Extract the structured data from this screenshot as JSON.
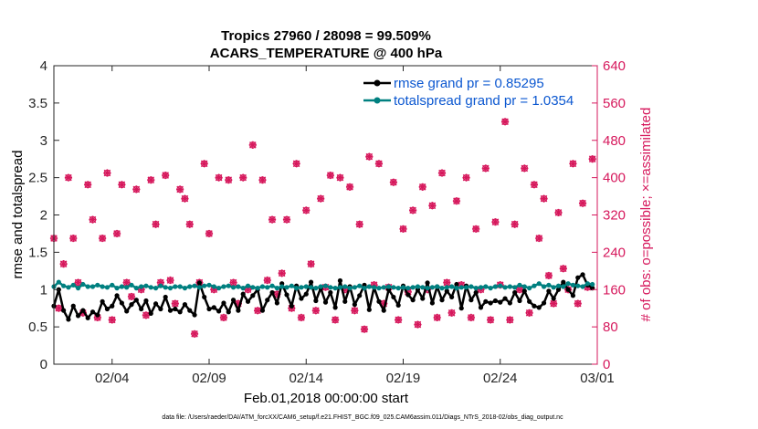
{
  "chart_data": {
    "type": "line",
    "title_lines": [
      "Tropics 27960 / 28098 = 99.509%",
      "ACARS_TEMPERATURE @ 400 hPa"
    ],
    "ylabel": "rmse and totalspread",
    "ylabel_right": "# of obs: o=possible; ×=assimilated",
    "xlabel": "Feb.01,2018 00:00:00 start",
    "footnote": "data file: /Users/raeder/DAI/ATM_forcXX/CAM6_setup/f.e21.FHIST_BGC.f09_025.CAM6assim.011/Diags_NTrS_2018-02/obs_diag_output.nc",
    "xlim": [
      1,
      29
    ],
    "ylim": [
      0,
      4
    ],
    "ylim_right": [
      0,
      640
    ],
    "x_ticks": [
      {
        "value": 4,
        "label": "02/04"
      },
      {
        "value": 9,
        "label": "02/09"
      },
      {
        "value": 14,
        "label": "02/14"
      },
      {
        "value": 19,
        "label": "02/19"
      },
      {
        "value": 24,
        "label": "02/24"
      },
      {
        "value": 29,
        "label": "03/01"
      }
    ],
    "y_ticks": [
      {
        "value": 0,
        "label": "0"
      },
      {
        "value": 0.5,
        "label": "0.5"
      },
      {
        "value": 1,
        "label": "1"
      },
      {
        "value": 1.5,
        "label": "1.5"
      },
      {
        "value": 2,
        "label": "2"
      },
      {
        "value": 2.5,
        "label": "2.5"
      },
      {
        "value": 3,
        "label": "3"
      },
      {
        "value": 3.5,
        "label": "3.5"
      },
      {
        "value": 4,
        "label": "4"
      }
    ],
    "y_ticks_right": [
      {
        "value": 0,
        "label": "0"
      },
      {
        "value": 80,
        "label": "80"
      },
      {
        "value": 160,
        "label": "160"
      },
      {
        "value": 240,
        "label": "240"
      },
      {
        "value": 320,
        "label": "320"
      },
      {
        "value": 400,
        "label": "400"
      },
      {
        "value": 480,
        "label": "480"
      },
      {
        "value": 560,
        "label": "560"
      },
      {
        "value": 640,
        "label": "640"
      }
    ],
    "legend": [
      {
        "name": "rmse grand pr = 0.85295",
        "color": "#000000"
      },
      {
        "name": "totalspread grand pr = 1.0354",
        "color": "#008080"
      }
    ],
    "colors": {
      "rmse": "#000000",
      "totalspread": "#008080",
      "obs": "#d6185c",
      "legend_text": "#0b57d0"
    },
    "rmse": {
      "x": [
        1.0,
        1.25,
        1.5,
        1.75,
        2.0,
        2.25,
        2.5,
        2.75,
        3.0,
        3.25,
        3.5,
        3.75,
        4.0,
        4.25,
        4.5,
        4.75,
        5.0,
        5.25,
        5.5,
        5.75,
        6.0,
        6.25,
        6.5,
        6.75,
        7.0,
        7.25,
        7.5,
        7.75,
        8.0,
        8.25,
        8.5,
        8.75,
        9.0,
        9.25,
        9.5,
        9.75,
        10.0,
        10.25,
        10.5,
        10.75,
        11.0,
        11.25,
        11.5,
        11.75,
        12.0,
        12.25,
        12.5,
        12.75,
        13.0,
        13.25,
        13.5,
        13.75,
        14.0,
        14.25,
        14.5,
        14.75,
        15.0,
        15.25,
        15.5,
        15.75,
        16.0,
        16.25,
        16.5,
        16.75,
        17.0,
        17.25,
        17.5,
        17.75,
        18.0,
        18.25,
        18.5,
        18.75,
        19.0,
        19.25,
        19.5,
        19.75,
        20.0,
        20.25,
        20.5,
        20.75,
        21.0,
        21.25,
        21.5,
        21.75,
        22.0,
        22.25,
        22.5,
        22.75,
        23.0,
        23.25,
        23.5,
        23.75,
        24.0,
        24.25,
        24.5,
        24.75,
        25.0,
        25.25,
        25.5,
        25.75,
        26.0,
        26.25,
        26.5,
        26.75,
        27.0,
        27.25,
        27.5,
        27.75,
        28.0,
        28.25,
        28.5,
        28.75
      ],
      "y": [
        0.78,
        1.0,
        0.72,
        0.6,
        0.78,
        0.65,
        0.72,
        0.62,
        0.7,
        0.66,
        0.84,
        0.74,
        0.78,
        0.92,
        0.82,
        0.71,
        0.8,
        0.86,
        0.74,
        0.85,
        0.68,
        0.81,
        0.74,
        0.9,
        0.72,
        0.74,
        0.7,
        0.8,
        0.72,
        0.66,
        1.09,
        0.9,
        0.74,
        0.76,
        0.71,
        0.82,
        0.7,
        0.86,
        0.72,
        0.94,
        0.84,
        0.92,
        1.0,
        0.72,
        0.86,
        0.96,
        0.82,
        1.08,
        0.93,
        0.78,
        1.05,
        0.88,
        0.94,
        1.1,
        0.85,
        1.02,
        0.83,
        0.96,
        0.76,
        1.12,
        0.84,
        1.04,
        0.8,
        0.92,
        1.06,
        0.73,
        1.03,
        0.84,
        0.72,
        1.0,
        0.9,
        0.79,
        1.05,
        0.93,
        0.86,
        1.0,
        0.88,
        1.09,
        0.82,
        1.04,
        0.86,
        0.98,
        0.9,
        1.07,
        0.75,
        1.05,
        0.86,
        0.96,
        0.76,
        0.84,
        0.82,
        0.85,
        0.83,
        0.88,
        0.82,
        0.96,
        0.85,
        0.98,
        0.84,
        0.78,
        0.76,
        0.82,
        0.98,
        0.88,
        1.0,
        1.1,
        1.0,
        0.92,
        1.16,
        1.2,
        1.06,
        1.02
      ]
    },
    "totalspread": {
      "x": [
        1.0,
        1.25,
        1.5,
        1.75,
        2.0,
        2.25,
        2.5,
        2.75,
        3.0,
        3.25,
        3.5,
        3.75,
        4.0,
        4.25,
        4.5,
        4.75,
        5.0,
        5.25,
        5.5,
        5.75,
        6.0,
        6.25,
        6.5,
        6.75,
        7.0,
        7.25,
        7.5,
        7.75,
        8.0,
        8.25,
        8.5,
        8.75,
        9.0,
        9.25,
        9.5,
        9.75,
        10.0,
        10.25,
        10.5,
        10.75,
        11.0,
        11.25,
        11.5,
        11.75,
        12.0,
        12.25,
        12.5,
        12.75,
        13.0,
        13.25,
        13.5,
        13.75,
        14.0,
        14.25,
        14.5,
        14.75,
        15.0,
        15.25,
        15.5,
        15.75,
        16.0,
        16.25,
        16.5,
        16.75,
        17.0,
        17.25,
        17.5,
        17.75,
        18.0,
        18.25,
        18.5,
        18.75,
        19.0,
        19.25,
        19.5,
        19.75,
        20.0,
        20.25,
        20.5,
        20.75,
        21.0,
        21.25,
        21.5,
        21.75,
        22.0,
        22.25,
        22.5,
        22.75,
        23.0,
        23.25,
        23.5,
        23.75,
        24.0,
        24.25,
        24.5,
        24.75,
        25.0,
        25.25,
        25.5,
        25.75,
        26.0,
        26.25,
        26.5,
        26.75,
        27.0,
        27.25,
        27.5,
        27.75,
        28.0,
        28.25,
        28.5,
        28.75
      ],
      "y": [
        1.04,
        1.1,
        1.05,
        1.03,
        1.06,
        1.02,
        1.07,
        1.04,
        1.04,
        1.06,
        1.04,
        1.03,
        1.06,
        1.02,
        1.04,
        1.03,
        1.06,
        1.02,
        1.04,
        1.05,
        1.03,
        1.02,
        1.05,
        1.03,
        1.02,
        1.04,
        1.04,
        1.02,
        1.04,
        1.05,
        1.03,
        1.05,
        1.06,
        1.04,
        1.02,
        1.04,
        1.05,
        1.03,
        1.04,
        1.02,
        1.05,
        1.03,
        1.02,
        1.04,
        1.03,
        1.05,
        1.02,
        1.04,
        1.03,
        1.05,
        1.02,
        1.03,
        1.04,
        1.03,
        1.02,
        1.04,
        1.05,
        1.03,
        1.02,
        1.03,
        1.04,
        1.02,
        1.03,
        1.05,
        1.02,
        1.04,
        1.03,
        1.02,
        1.03,
        1.04,
        1.03,
        1.02,
        1.03,
        1.02,
        1.03,
        1.04,
        1.03,
        1.02,
        1.03,
        1.04,
        1.02,
        1.03,
        1.04,
        1.02,
        1.03,
        1.03,
        1.04,
        1.02,
        1.03,
        1.04,
        1.02,
        1.04,
        1.05,
        1.03,
        1.04,
        1.03,
        1.06,
        1.04,
        1.02,
        1.05,
        1.08,
        1.04,
        1.06,
        1.03,
        1.05,
        1.04,
        1.08,
        1.06,
        1.05,
        1.04,
        1.08,
        1.07
      ]
    },
    "obs_count": {
      "x": [
        1.0,
        1.25,
        1.5,
        1.75,
        2.0,
        2.25,
        2.5,
        2.75,
        3.0,
        3.25,
        3.5,
        3.75,
        4.0,
        4.25,
        4.5,
        4.75,
        5.0,
        5.25,
        5.5,
        5.75,
        6.0,
        6.25,
        6.5,
        6.75,
        7.0,
        7.25,
        7.5,
        7.75,
        8.0,
        8.25,
        8.5,
        8.75,
        9.0,
        9.25,
        9.5,
        9.75,
        10.0,
        10.25,
        10.5,
        10.75,
        11.0,
        11.25,
        11.5,
        11.75,
        12.0,
        12.25,
        12.5,
        12.75,
        13.0,
        13.25,
        13.5,
        13.75,
        14.0,
        14.25,
        14.5,
        14.75,
        15.0,
        15.25,
        15.5,
        15.75,
        16.0,
        16.25,
        16.5,
        16.75,
        17.0,
        17.25,
        17.5,
        17.75,
        18.0,
        18.25,
        18.5,
        18.75,
        19.0,
        19.25,
        19.5,
        19.75,
        20.0,
        20.25,
        20.5,
        20.75,
        21.0,
        21.25,
        21.5,
        21.75,
        22.0,
        22.25,
        22.5,
        22.75,
        23.0,
        23.25,
        23.5,
        23.75,
        24.0,
        24.25,
        24.5,
        24.75,
        25.0,
        25.25,
        25.5,
        25.75,
        26.0,
        26.25,
        26.5,
        26.75,
        27.0,
        27.25,
        27.5,
        27.75,
        28.0,
        28.25,
        28.5,
        28.75
      ],
      "y": [
        270,
        120,
        215,
        400,
        270,
        175,
        110,
        385,
        310,
        100,
        270,
        410,
        95,
        280,
        385,
        175,
        145,
        375,
        160,
        105,
        395,
        300,
        175,
        405,
        180,
        130,
        375,
        355,
        300,
        65,
        175,
        430,
        280,
        160,
        400,
        100,
        395,
        175,
        130,
        400,
        160,
        470,
        115,
        395,
        180,
        310,
        150,
        195,
        310,
        120,
        430,
        100,
        330,
        215,
        115,
        355,
        165,
        405,
        95,
        400,
        160,
        380,
        115,
        300,
        75,
        445,
        170,
        430,
        130,
        165,
        390,
        95,
        290,
        155,
        330,
        85,
        380,
        160,
        340,
        100,
        410,
        175,
        110,
        350,
        170,
        400,
        100,
        290,
        160,
        420,
        95,
        305,
        170,
        520,
        95,
        300,
        160,
        420,
        110,
        385,
        270,
        355,
        190,
        130,
        325,
        205,
        160,
        430,
        130,
        345,
        165,
        440
      ]
    }
  }
}
